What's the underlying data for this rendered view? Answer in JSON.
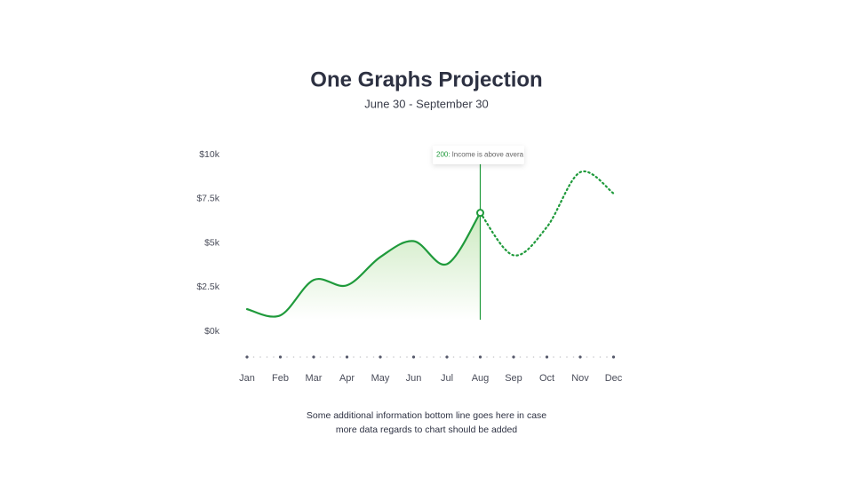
{
  "chart_data": {
    "type": "line",
    "title": "One Graphs Projection",
    "subtitle": "June 30 - September 30",
    "categories": [
      "Jan",
      "Feb",
      "Mar",
      "Apr",
      "May",
      "Jun",
      "Jul",
      "Aug",
      "Sep",
      "Oct",
      "Nov",
      "Dec"
    ],
    "series": [
      {
        "color": "#1f9a3b",
        "dash": false,
        "area": true,
        "values": [
          1.25,
          0.9,
          2.9,
          2.6,
          4.2,
          5.1,
          3.8,
          6.7,
          null,
          null,
          null,
          null
        ]
      },
      {
        "color": "#1f9a3b",
        "dash": true,
        "area": false,
        "values": [
          null,
          null,
          null,
          null,
          null,
          null,
          null,
          6.7,
          4.3,
          5.9,
          9.0,
          7.8
        ]
      }
    ],
    "ylim": [
      0,
      10
    ],
    "yticks": [
      {
        "value": 0,
        "label": "$0k"
      },
      {
        "value": 2.5,
        "label": "$2.5k"
      },
      {
        "value": 5,
        "label": "$5k"
      },
      {
        "value": 7.5,
        "label": "$7.5k"
      },
      {
        "value": 10,
        "label": "$10k"
      }
    ],
    "grid": false,
    "annotation": {
      "label": "200:",
      "text": "Income is above avera"
    },
    "footnote": [
      "Some additional information bottom line goes here in case",
      "more data regards to chart should be added"
    ]
  }
}
